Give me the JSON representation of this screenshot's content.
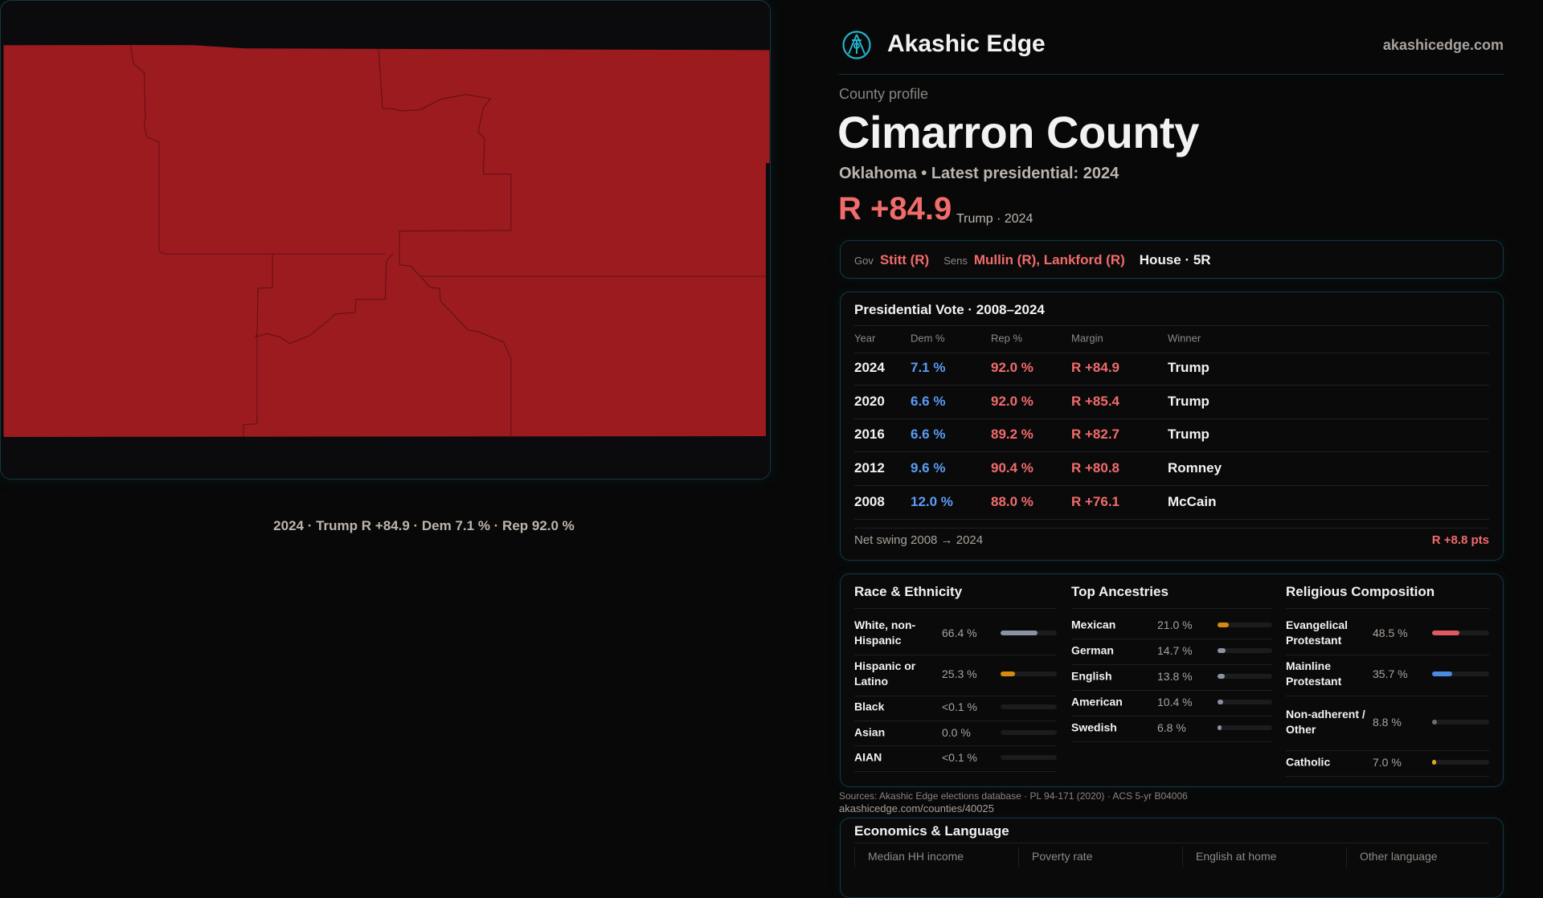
{
  "header": {
    "brand": "Akashic Edge",
    "site": "akashicedge.com",
    "logo_icon": "akashic-sigil-icon"
  },
  "profile": {
    "eyebrow": "County profile",
    "title": "Cimarron County",
    "subtitle": "Oklahoma • Latest presidential: 2024",
    "margin": "R +84.9",
    "margin_note": "Trump · 2024"
  },
  "officials": {
    "gov_label": "Gov",
    "gov": "Stitt (R)",
    "sens_label": "Sens",
    "sens": "Mullin (R), Lankford (R)",
    "house": "House · 5R"
  },
  "map": {
    "caption": "2024 · Trump R +84.9 · Dem 7.1 % · Rep 92.0 %",
    "fill_color": "#9b1b1f"
  },
  "presidential": {
    "title": "Presidential Vote · 2008–2024",
    "columns": [
      "Year",
      "Dem %",
      "Rep %",
      "Margin",
      "Winner"
    ],
    "rows": [
      {
        "year": "2024",
        "dem": "7.1 %",
        "rep": "92.0 %",
        "margin": "R +84.9",
        "winner": "Trump"
      },
      {
        "year": "2020",
        "dem": "6.6 %",
        "rep": "92.0 %",
        "margin": "R +85.4",
        "winner": "Trump"
      },
      {
        "year": "2016",
        "dem": "6.6 %",
        "rep": "89.2 %",
        "margin": "R +82.7",
        "winner": "Trump"
      },
      {
        "year": "2012",
        "dem": "9.6 %",
        "rep": "90.4 %",
        "margin": "R +80.8",
        "winner": "Romney"
      },
      {
        "year": "2008",
        "dem": "12.0 %",
        "rep": "88.0 %",
        "margin": "R +76.1",
        "winner": "McCain"
      }
    ],
    "swing_label": "Net swing 2008 → 2024",
    "swing_value": "R +8.8 pts"
  },
  "race": {
    "title": "Race & Ethnicity",
    "items": [
      {
        "label": "White, non-Hispanic",
        "value": "66.4 %",
        "pct": 66.4,
        "color": "#8a93a3"
      },
      {
        "label": "Hispanic or Latino",
        "value": "25.3 %",
        "pct": 25.3,
        "color": "#d68a10"
      },
      {
        "label": "Black",
        "value": "<0.1 %",
        "pct": 0,
        "color": "#8a93a3"
      },
      {
        "label": "Asian",
        "value": "0.0 %",
        "pct": 0,
        "color": "#8a93a3"
      },
      {
        "label": "AIAN",
        "value": "<0.1 %",
        "pct": 0,
        "color": "#8a93a3"
      }
    ]
  },
  "ancestry": {
    "title": "Top Ancestries",
    "items": [
      {
        "label": "Mexican",
        "value": "21.0 %",
        "pct": 21.0,
        "color": "#d68a10"
      },
      {
        "label": "German",
        "value": "14.7 %",
        "pct": 14.7,
        "color": "#8a93a3"
      },
      {
        "label": "English",
        "value": "13.8 %",
        "pct": 13.8,
        "color": "#8a93a3"
      },
      {
        "label": "American",
        "value": "10.4 %",
        "pct": 10.4,
        "color": "#8a93a3"
      },
      {
        "label": "Swedish",
        "value": "6.8 %",
        "pct": 6.8,
        "color": "#8a93a3"
      }
    ]
  },
  "religion": {
    "title": "Religious Composition",
    "items": [
      {
        "label": "Evangelical Protestant",
        "value": "48.5 %",
        "pct": 48.5,
        "color": "#e05a5f"
      },
      {
        "label": "Mainline Protestant",
        "value": "35.7 %",
        "pct": 35.7,
        "color": "#4a8ae0"
      },
      {
        "label": "Non-adherent / Other",
        "value": "8.8 %",
        "pct": 8.8,
        "color": "#6b6f78"
      },
      {
        "label": "Catholic",
        "value": "7.0 %",
        "pct": 7.0,
        "color": "#e0a81a"
      }
    ]
  },
  "economics": {
    "title": "Economics & Language",
    "columns": [
      "Median HH income",
      "Poverty rate",
      "English at home",
      "Other language"
    ]
  },
  "footer": {
    "sources": "Sources: Akashic Edge elections database · PL 94-171 (2020) · ACS 5-yr B04006",
    "url": "akashicedge.com/counties/40025"
  },
  "colors": {
    "rep": "#f26b6b",
    "dem": "#5b9cf5",
    "border": "#0f3a44"
  }
}
